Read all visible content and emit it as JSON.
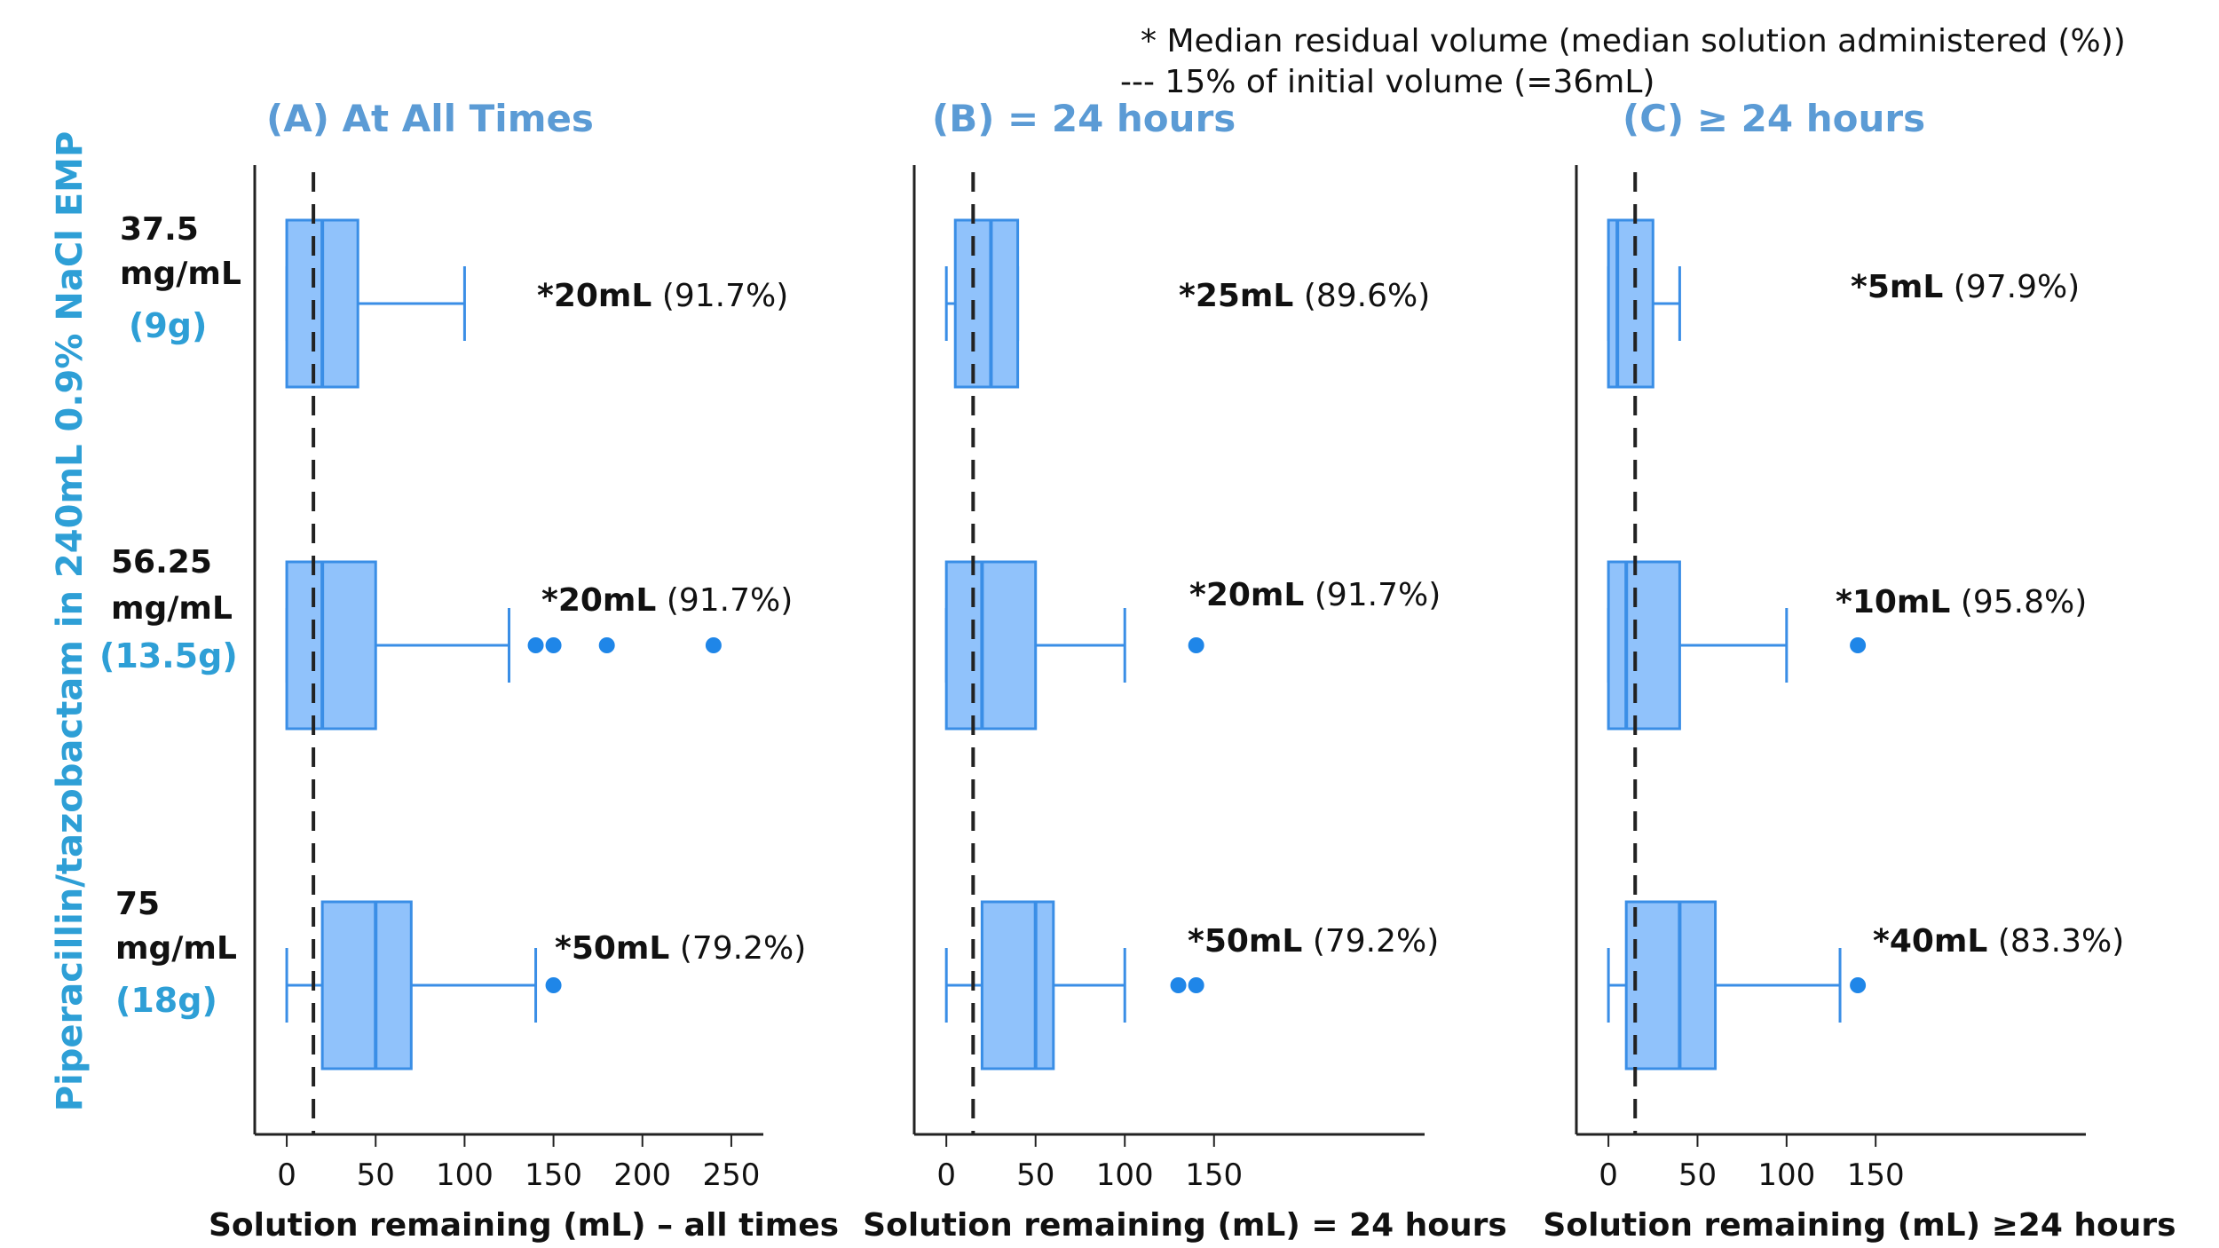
{
  "legend": {
    "line1": "* Median residual volume (median solution administered (%))",
    "line2": "--- 15% of initial volume (=36mL)"
  },
  "ylabel": "Piperacillin/tazobactam in 240mL 0.9% NaCl EMP",
  "groups": [
    {
      "label_lines": [
        "37.5",
        "mg/mL"
      ],
      "dose": "(9g)"
    },
    {
      "label_lines": [
        "56.25",
        "mg/mL"
      ],
      "dose": "(13.5g)"
    },
    {
      "label_lines": [
        "75",
        "mg/mL"
      ],
      "dose": "(18g)"
    }
  ],
  "colors": {
    "box_fill": "#90c2fb",
    "box_stroke": "#3a8ee6",
    "outlier": "#1f86e8",
    "title": "#5b9bd5",
    "ylabel": "#2e9fd6"
  },
  "chart_data": [
    {
      "type": "box",
      "title": "(A) At All Times",
      "xlabel": "Solution remaining (mL) – all times",
      "xlim": [
        -18,
        268
      ],
      "xticks": [
        0,
        50,
        100,
        150,
        200,
        250
      ],
      "reference_line": 15,
      "series": [
        {
          "whisker_low": 0,
          "q1": 0,
          "median": 20,
          "q3": 40,
          "whisker_high": 100,
          "outliers": [],
          "annotation_value": "*20mL",
          "annotation_pct": "(91.7%)"
        },
        {
          "whisker_low": 0,
          "q1": 0,
          "median": 20,
          "q3": 50,
          "whisker_high": 125,
          "outliers": [
            140,
            150,
            180,
            240
          ],
          "annotation_value": "*20mL",
          "annotation_pct": "(91.7%)"
        },
        {
          "whisker_low": 0,
          "q1": 20,
          "median": 50,
          "q3": 70,
          "whisker_high": 140,
          "outliers": [
            150
          ],
          "annotation_value": "*50mL",
          "annotation_pct": "(79.2%)"
        }
      ]
    },
    {
      "type": "box",
      "title": "(B) = 24 hours",
      "xlabel": "Solution remaining (mL) = 24 hours",
      "xlim": [
        -18,
        268
      ],
      "xticks": [
        0,
        50,
        100,
        150
      ],
      "reference_line": 15,
      "series": [
        {
          "whisker_low": 0,
          "q1": 5,
          "median": 25,
          "q3": 40,
          "whisker_high": 40,
          "outliers": [],
          "annotation_value": "*25mL",
          "annotation_pct": "(89.6%)"
        },
        {
          "whisker_low": 0,
          "q1": 0,
          "median": 20,
          "q3": 50,
          "whisker_high": 100,
          "outliers": [
            140
          ],
          "annotation_value": "*20mL",
          "annotation_pct": "(91.7%)"
        },
        {
          "whisker_low": 0,
          "q1": 20,
          "median": 50,
          "q3": 60,
          "whisker_high": 100,
          "outliers": [
            130,
            140
          ],
          "annotation_value": "*50mL",
          "annotation_pct": "(79.2%)"
        }
      ]
    },
    {
      "type": "box",
      "title": "(C) ≥ 24 hours",
      "xlabel": "Solution remaining (mL) ≥24 hours",
      "xlim": [
        -18,
        268
      ],
      "xticks": [
        0,
        50,
        100,
        150
      ],
      "reference_line": 15,
      "series": [
        {
          "whisker_low": 0,
          "q1": 0,
          "median": 5,
          "q3": 25,
          "whisker_high": 40,
          "outliers": [],
          "annotation_value": "*5mL",
          "annotation_pct": "(97.9%)"
        },
        {
          "whisker_low": 0,
          "q1": 0,
          "median": 10,
          "q3": 40,
          "whisker_high": 100,
          "outliers": [
            140
          ],
          "annotation_value": "*10mL",
          "annotation_pct": "(95.8%)"
        },
        {
          "whisker_low": 0,
          "q1": 10,
          "median": 40,
          "q3": 60,
          "whisker_high": 130,
          "outliers": [
            140
          ],
          "annotation_value": "*40mL",
          "annotation_pct": "(83.3%)"
        }
      ]
    }
  ]
}
